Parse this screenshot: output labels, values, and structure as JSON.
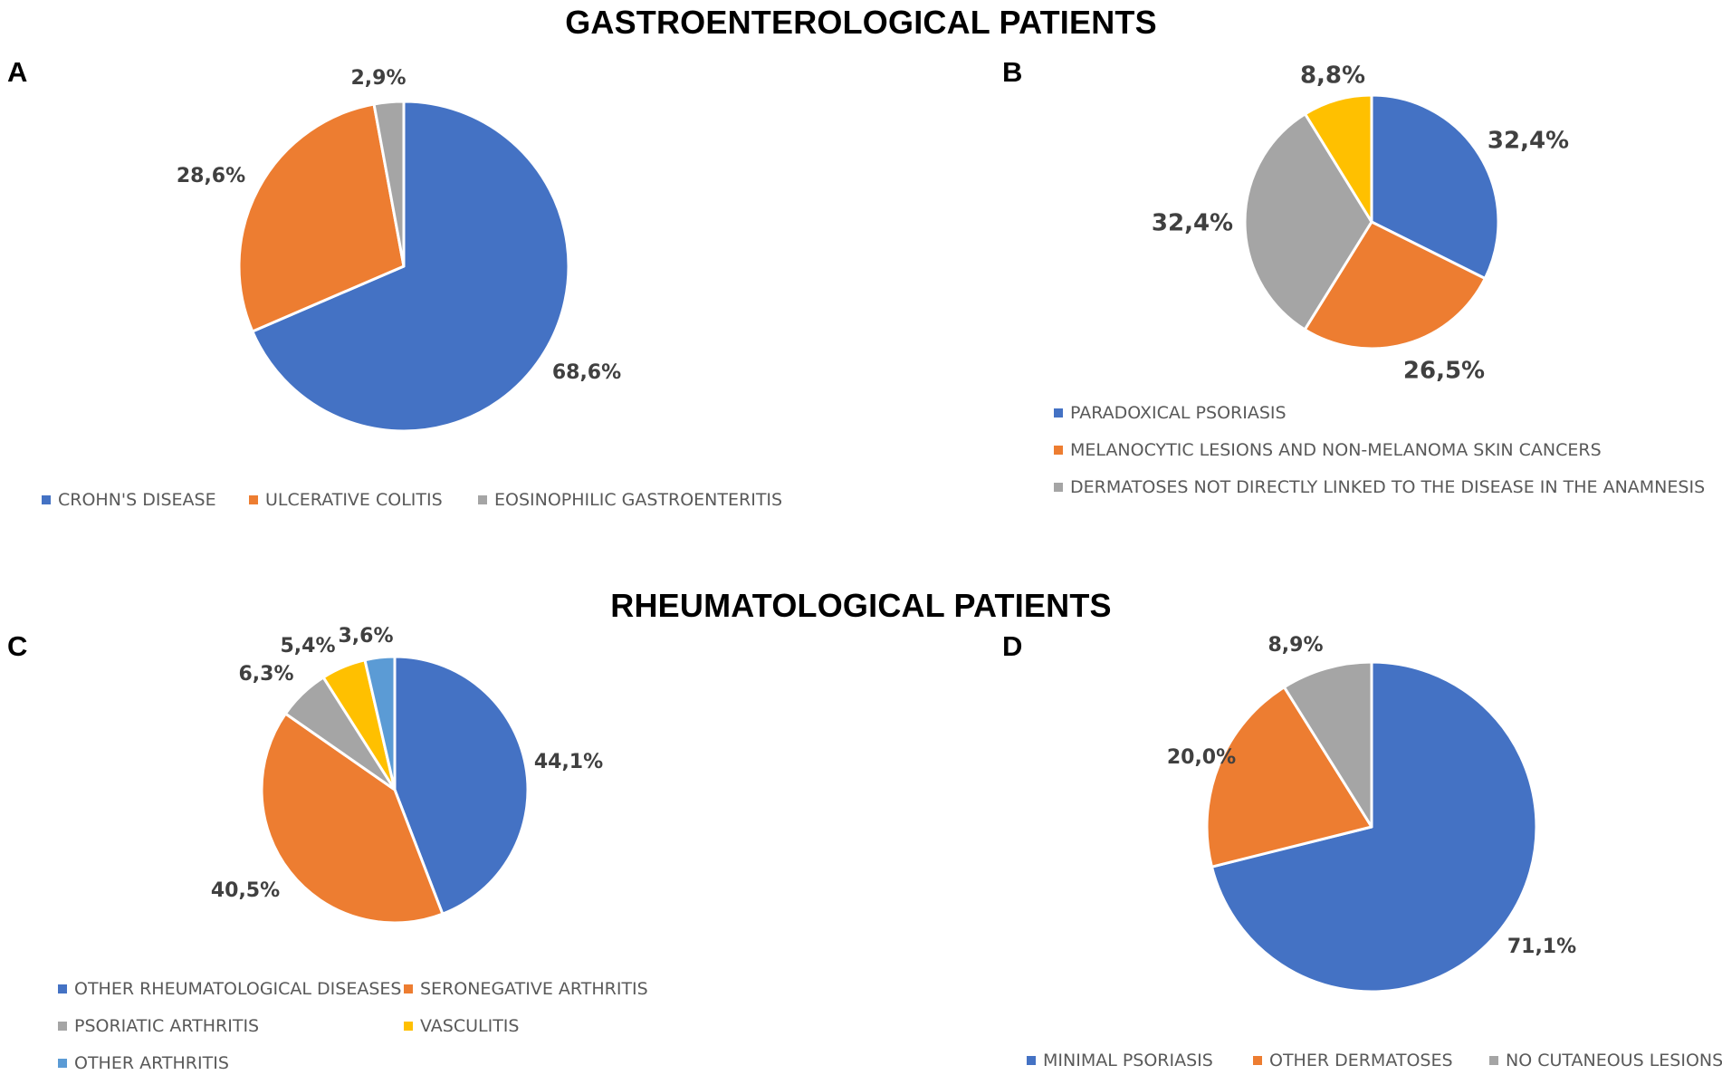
{
  "titles": {
    "gastro": "GASTROENTEROLOGICAL PATIENTS",
    "rheuma": "RHEUMATOLOGICAL PATIENTS"
  },
  "colors": {
    "blue": "#4472C4",
    "orange": "#ED7D31",
    "gray": "#A5A5A5",
    "yellow": "#FFC000",
    "lightblue": "#5B9BD5"
  },
  "chart_data": [
    {
      "panel": "A",
      "type": "pie",
      "title": "",
      "series": [
        {
          "name": "CROHN'S DISEASE",
          "value": 68.6,
          "label": "68,6%",
          "color": "#4472C4"
        },
        {
          "name": "ULCERATIVE COLITIS",
          "value": 28.6,
          "label": "28,6%",
          "color": "#ED7D31"
        },
        {
          "name": "EOSINOPHILIC GASTROENTERITIS",
          "value": 2.9,
          "label": "2,9%",
          "color": "#A5A5A5"
        }
      ]
    },
    {
      "panel": "B",
      "type": "pie",
      "title": "",
      "series": [
        {
          "name": "PARADOXICAL PSORIASIS",
          "value": 32.4,
          "label": "32,4%",
          "color": "#4472C4"
        },
        {
          "name": "MELANOCYTIC LESIONS AND NON-MELANOMA SKIN CANCERS",
          "value": 26.5,
          "label": "26,5%",
          "color": "#ED7D31"
        },
        {
          "name": "DERMATOSES NOT DIRECTLY LINKED TO THE DISEASE IN THE ANAMNESIS",
          "value": 32.4,
          "label": "32,4%",
          "color": "#A5A5A5"
        },
        {
          "name": "",
          "value": 8.8,
          "label": "8,8%",
          "color": "#FFC000"
        }
      ]
    },
    {
      "panel": "C",
      "type": "pie",
      "title": "",
      "series": [
        {
          "name": "OTHER RHEUMATOLOGICAL DISEASES",
          "value": 44.1,
          "label": "44,1%",
          "color": "#4472C4"
        },
        {
          "name": "SERONEGATIVE ARTHRITIS",
          "value": 40.5,
          "label": "40,5%",
          "color": "#ED7D31"
        },
        {
          "name": "PSORIATIC ARTHRITIS",
          "value": 6.3,
          "label": "6,3%",
          "color": "#A5A5A5"
        },
        {
          "name": "VASCULITIS",
          "value": 5.4,
          "label": "5,4%",
          "color": "#FFC000"
        },
        {
          "name": "OTHER ARTHRITIS",
          "value": 3.6,
          "label": "3,6%",
          "color": "#5B9BD5"
        }
      ]
    },
    {
      "panel": "D",
      "type": "pie",
      "title": "",
      "series": [
        {
          "name": "MINIMAL PSORIASIS",
          "value": 71.1,
          "label": "71,1%",
          "color": "#4472C4"
        },
        {
          "name": "OTHER DERMATOSES",
          "value": 20.0,
          "label": "20,0%",
          "color": "#ED7D31"
        },
        {
          "name": "NO CUTANEOUS LESIONS",
          "value": 8.9,
          "label": "8,9%",
          "color": "#A5A5A5"
        }
      ]
    }
  ]
}
